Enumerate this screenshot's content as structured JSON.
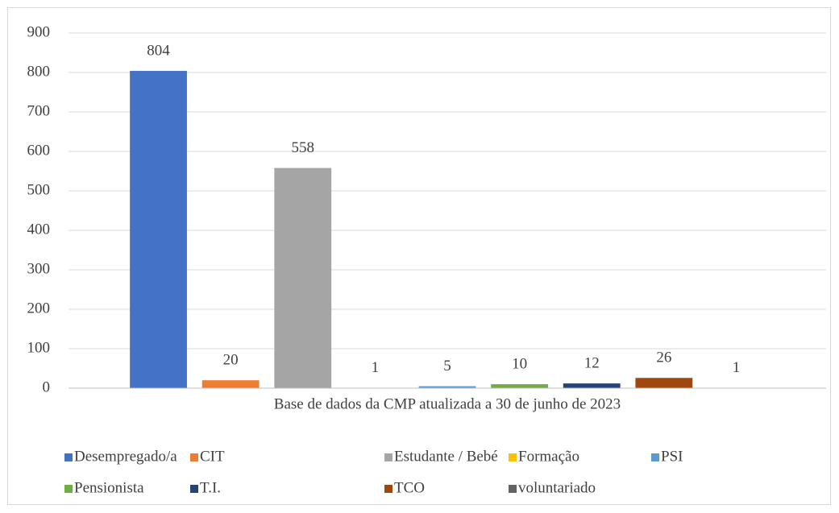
{
  "chart_data": {
    "type": "bar",
    "categories": [
      "Base de dados da CMP atualizada a 30 de junho de 2023"
    ],
    "series": [
      {
        "name": "Desempregado/a",
        "color": "#4472c4",
        "values": [
          804
        ]
      },
      {
        "name": "CIT",
        "color": "#ed7d31",
        "values": [
          20
        ]
      },
      {
        "name": "Estudante / Bebé",
        "color": "#a5a5a5",
        "values": [
          558
        ]
      },
      {
        "name": "Formação",
        "color": "#ffc000",
        "values": [
          1
        ]
      },
      {
        "name": "PSI",
        "color": "#5b9bd5",
        "values": [
          5
        ]
      },
      {
        "name": "Pensionista",
        "color": "#70ad47",
        "values": [
          10
        ]
      },
      {
        "name": "T.I.",
        "color": "#264478",
        "values": [
          12
        ]
      },
      {
        "name": "TCO",
        "color": "#9e480e",
        "values": [
          26
        ]
      },
      {
        "name": "voluntariado",
        "color": "#636363",
        "values": [
          1
        ]
      }
    ],
    "ylim": [
      0,
      900
    ],
    "yticks": [
      0,
      100,
      200,
      300,
      400,
      500,
      600,
      700,
      800,
      900
    ],
    "grid": true,
    "legend": "bottom"
  }
}
